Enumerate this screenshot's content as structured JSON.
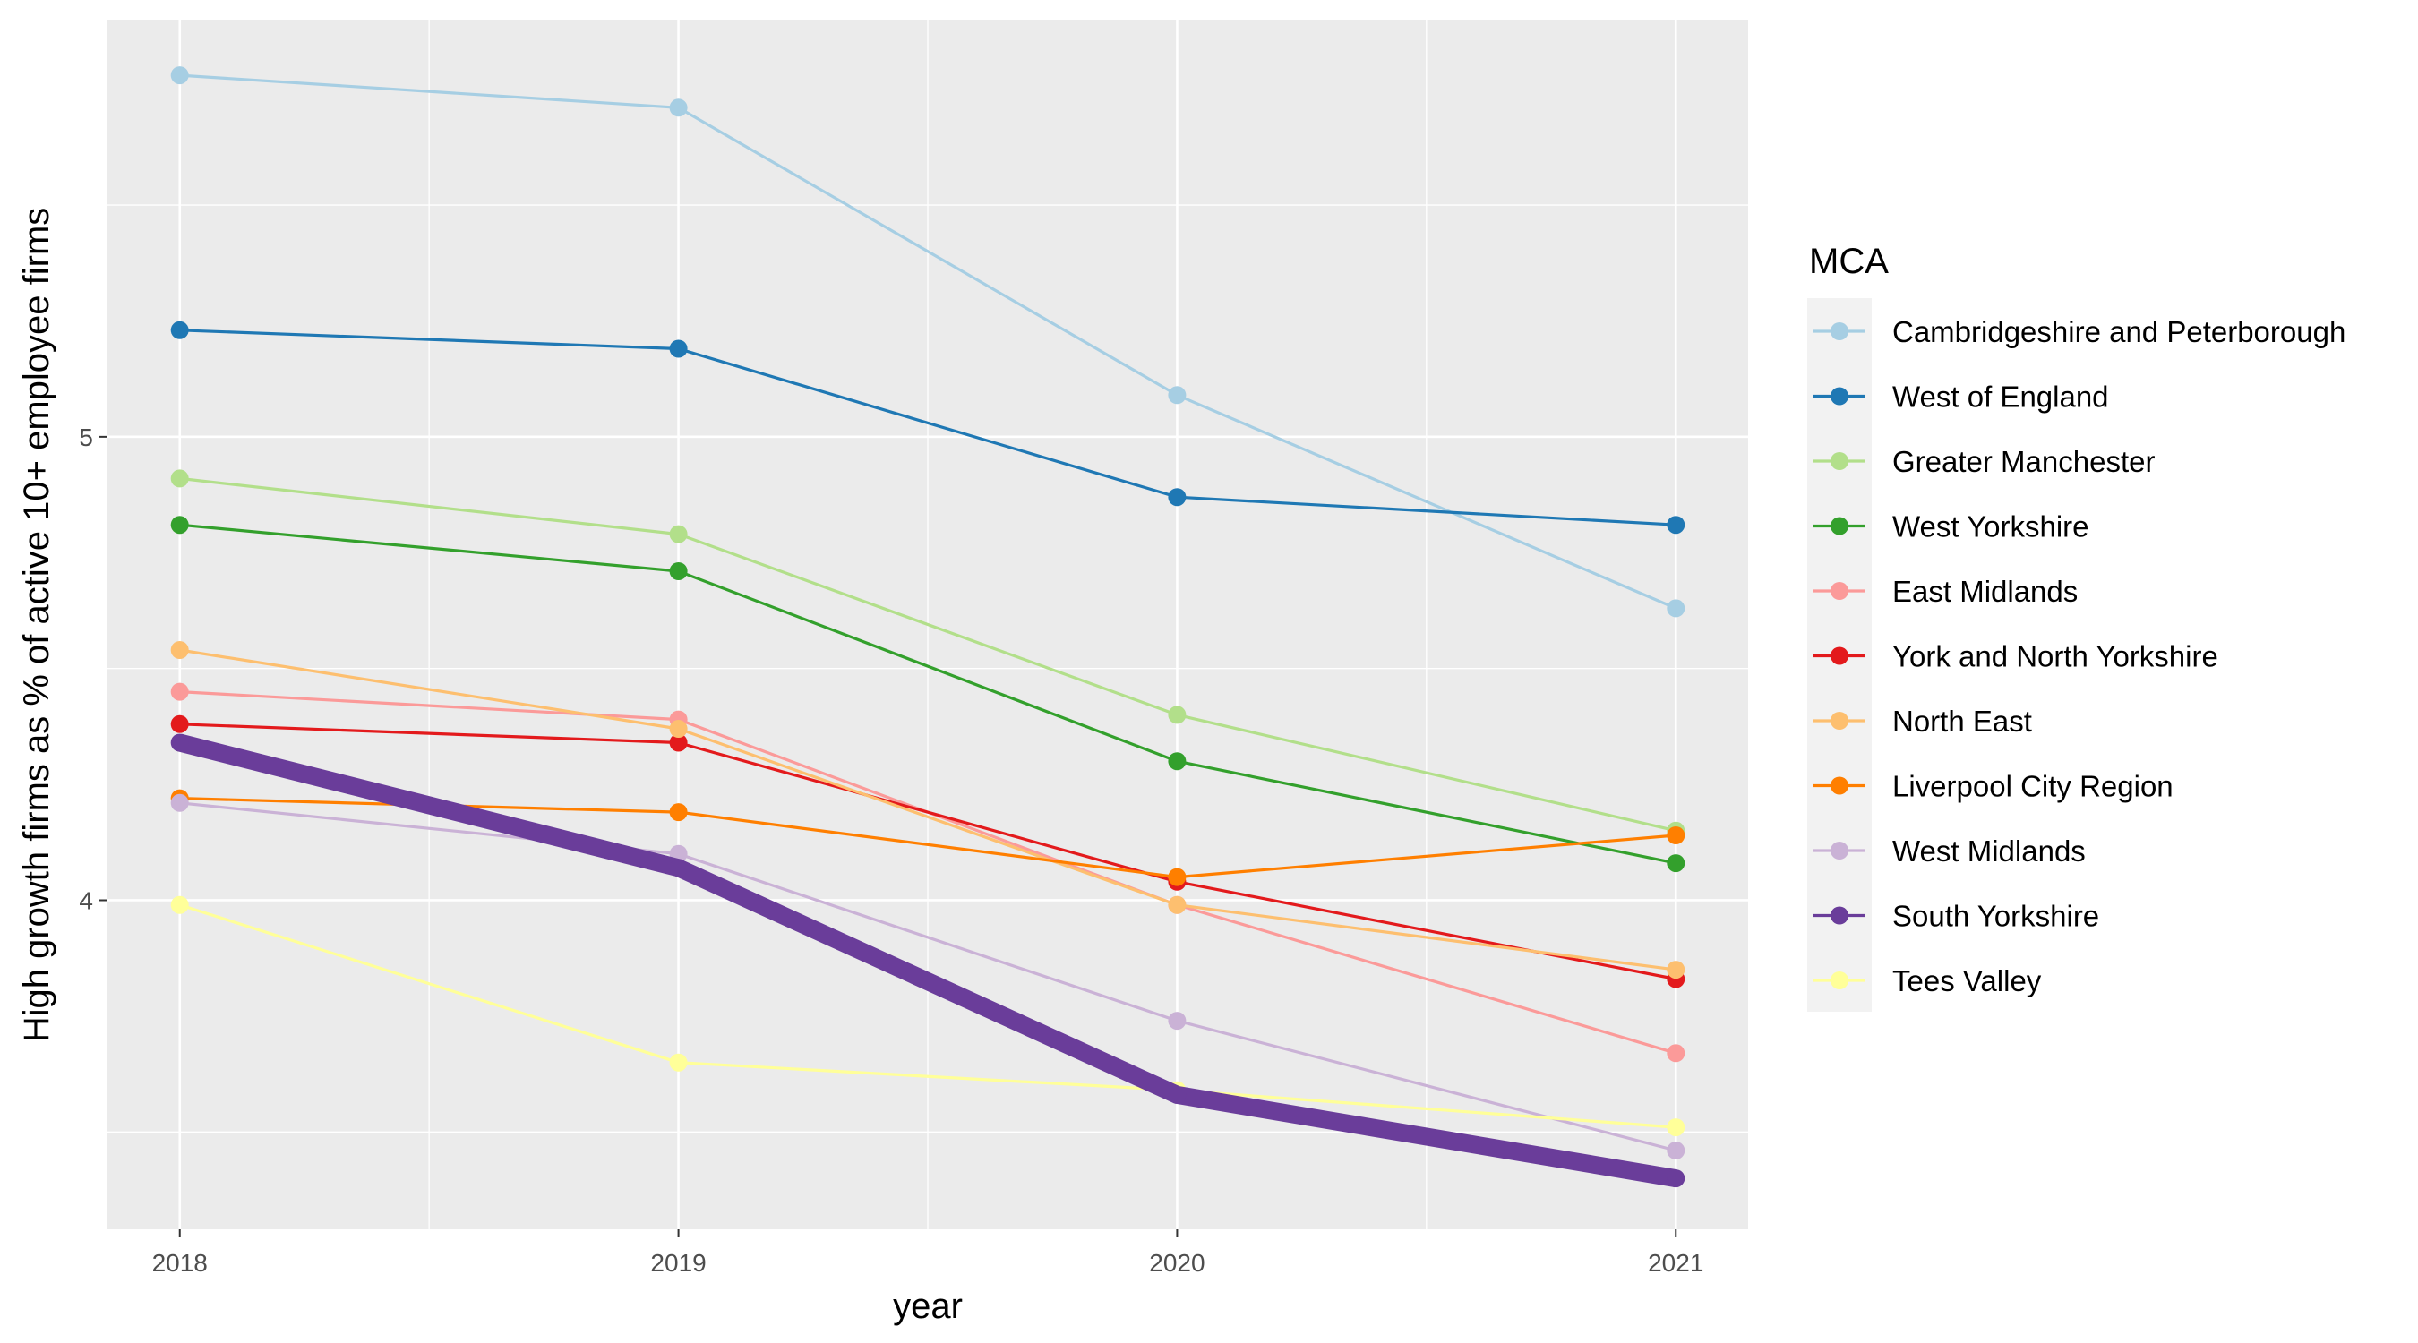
{
  "chart_data": {
    "type": "line",
    "xlabel": "year",
    "ylabel": "High growth firms as % of active 10+ employee firms",
    "x": [
      2018,
      2019,
      2020,
      2021
    ],
    "xticks": [
      "2018",
      "2019",
      "2020",
      "2021"
    ],
    "xlim": [
      2017.855,
      2021.145
    ],
    "yticks": [
      4,
      5
    ],
    "ylim": [
      3.29,
      5.9
    ],
    "grid": true,
    "background": "#EBEBEB",
    "grid_color": "#FFFFFF",
    "legend": {
      "title": "MCA",
      "placement": "right"
    },
    "highlight_series": "South Yorkshire",
    "series": [
      {
        "name": "Cambridgeshire and Peterborough",
        "color": "#A6CEE3",
        "values": [
          5.78,
          5.71,
          5.09,
          4.63
        ]
      },
      {
        "name": "West of England",
        "color": "#1F78B4",
        "values": [
          5.23,
          5.19,
          4.87,
          4.81
        ]
      },
      {
        "name": "Greater Manchester",
        "color": "#B2DF8A",
        "values": [
          4.91,
          4.79,
          4.4,
          4.15
        ]
      },
      {
        "name": "West Yorkshire",
        "color": "#33A02C",
        "values": [
          4.81,
          4.71,
          4.3,
          4.08
        ]
      },
      {
        "name": "East Midlands",
        "color": "#FB9A99",
        "values": [
          4.45,
          4.39,
          3.99,
          3.67
        ]
      },
      {
        "name": "York and North Yorkshire",
        "color": "#E31A1C",
        "values": [
          4.38,
          4.34,
          4.04,
          3.83
        ]
      },
      {
        "name": "North East",
        "color": "#FDBF6F",
        "values": [
          4.54,
          4.37,
          3.99,
          3.85
        ]
      },
      {
        "name": "Liverpool City Region",
        "color": "#FF7F00",
        "values": [
          4.22,
          4.19,
          4.05,
          4.14
        ]
      },
      {
        "name": "West Midlands",
        "color": "#CAB2D6",
        "values": [
          4.21,
          4.1,
          3.74,
          3.46
        ]
      },
      {
        "name": "South Yorkshire",
        "color": "#6A3D9A",
        "values": [
          4.34,
          4.07,
          3.58,
          3.4
        ]
      },
      {
        "name": "Tees Valley",
        "color": "#FFFF99",
        "values": [
          3.99,
          3.65,
          3.59,
          3.51
        ]
      }
    ]
  }
}
